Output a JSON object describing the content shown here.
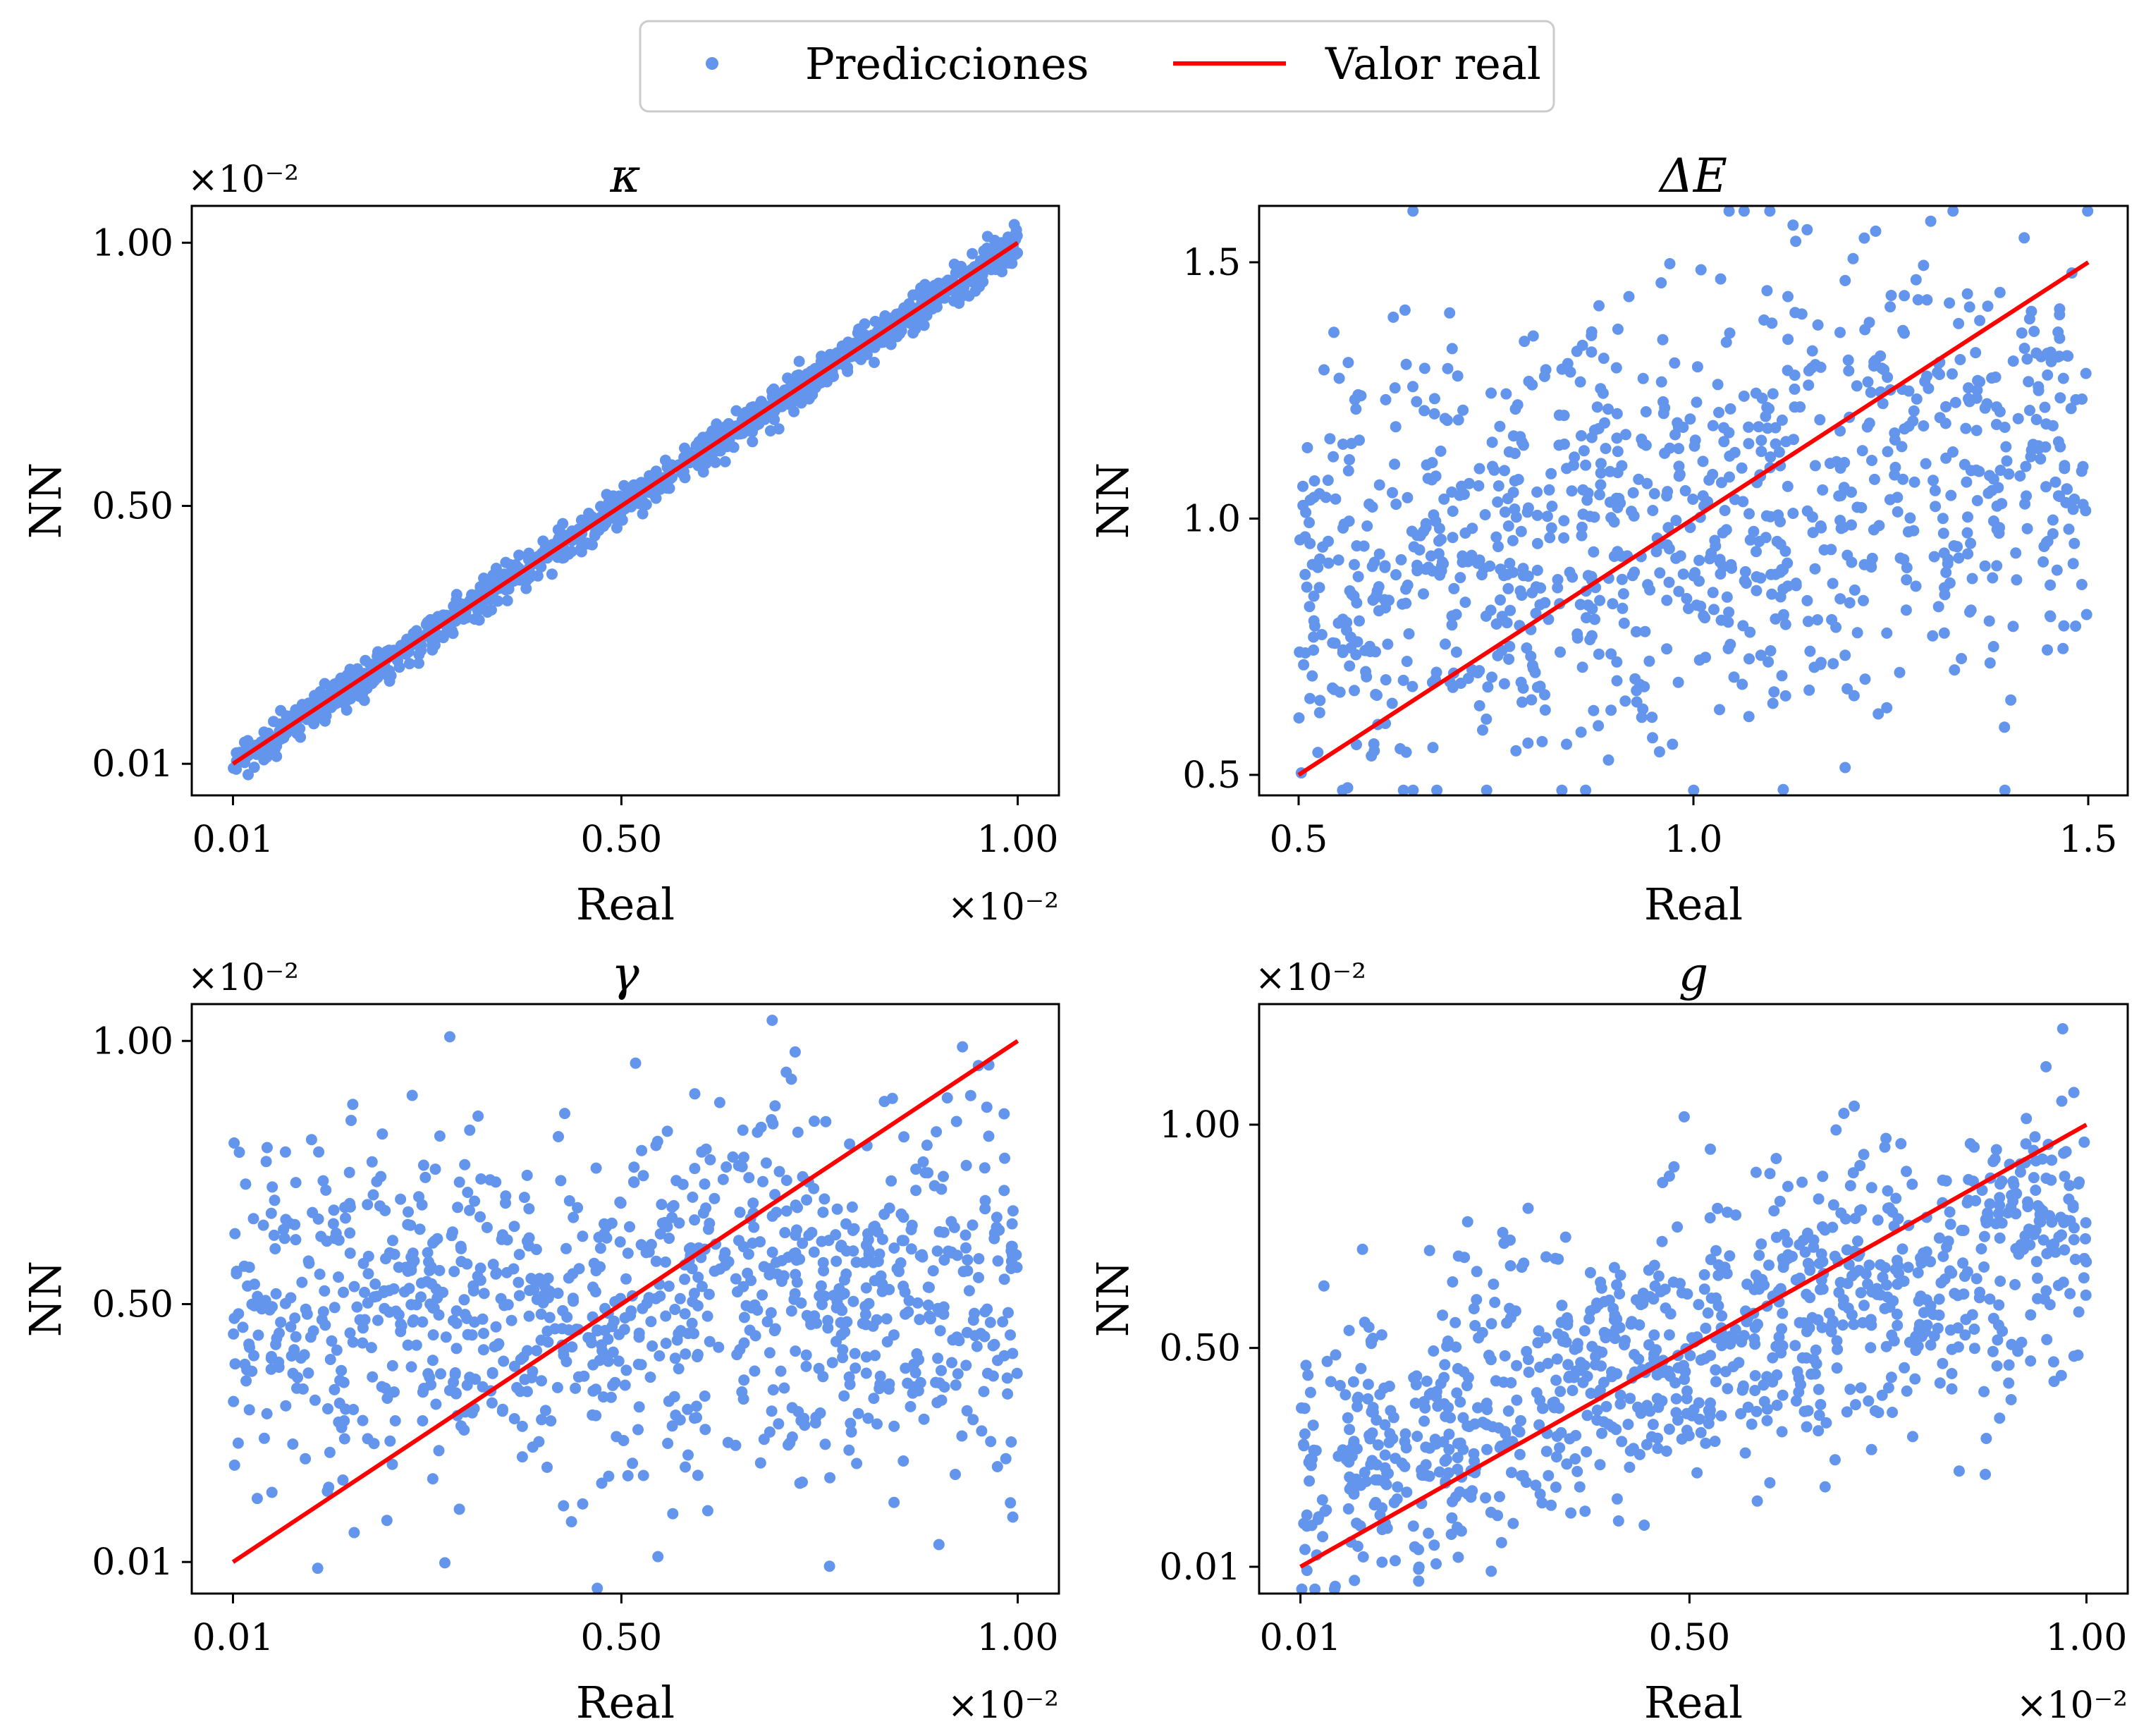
{
  "legend": {
    "items": [
      {
        "label": "Predicciones",
        "kind": "marker",
        "color": "#6495ED"
      },
      {
        "label": "Valor real",
        "kind": "line",
        "color": "#FF0000"
      }
    ]
  },
  "chart_data": [
    {
      "type": "scatter",
      "title": "κ",
      "xlabel": "Real",
      "ylabel": "NN",
      "x_offset_text": "×10⁻²",
      "y_offset_text": "×10⁻²",
      "xlim": [
        -0.042,
        1.052
      ],
      "ylim": [
        -0.05,
        1.07
      ],
      "xticks": [
        {
          "value": 0.01,
          "label": "0.01"
        },
        {
          "value": 0.5,
          "label": "0.50"
        },
        {
          "value": 1.0,
          "label": "1.00"
        }
      ],
      "yticks": [
        {
          "value": 0.01,
          "label": "0.01"
        },
        {
          "value": 0.5,
          "label": "0.50"
        },
        {
          "value": 1.0,
          "label": "1.00"
        }
      ],
      "series": [
        {
          "name": "Predicciones",
          "x_range": [
            0.01,
            1.0
          ],
          "relation": "y≈x",
          "noise": 0.018,
          "count": 1000
        },
        {
          "name": "Valor real",
          "x": [
            0.01,
            1.0
          ],
          "y": [
            0.01,
            1.0
          ]
        }
      ]
    },
    {
      "type": "scatter",
      "title": "ΔE",
      "xlabel": "Real",
      "ylabel": "NN",
      "x_offset_text": "",
      "y_offset_text": "",
      "xlim": [
        0.45,
        1.55
      ],
      "ylim": [
        0.46,
        1.61
      ],
      "xticks": [
        {
          "value": 0.5,
          "label": "0.5"
        },
        {
          "value": 1.0,
          "label": "1.0"
        },
        {
          "value": 1.5,
          "label": "1.5"
        }
      ],
      "yticks": [
        {
          "value": 0.5,
          "label": "0.5"
        },
        {
          "value": 1.0,
          "label": "1.0"
        },
        {
          "value": 1.5,
          "label": "1.5"
        }
      ],
      "series": [
        {
          "name": "Predicciones",
          "x_range": [
            0.5,
            1.5
          ],
          "relation": "weakly correlated, wide scatter",
          "noise": 0.22,
          "count": 1000
        },
        {
          "name": "Valor real",
          "x": [
            0.5,
            1.5
          ],
          "y": [
            0.5,
            1.5
          ]
        }
      ]
    },
    {
      "type": "scatter",
      "title": "γ",
      "xlabel": "Real",
      "ylabel": "NN",
      "x_offset_text": "×10⁻²",
      "y_offset_text": "×10⁻²",
      "xlim": [
        -0.042,
        1.052
      ],
      "ylim": [
        -0.05,
        1.07
      ],
      "xticks": [
        {
          "value": 0.01,
          "label": "0.01"
        },
        {
          "value": 0.5,
          "label": "0.50"
        },
        {
          "value": 1.0,
          "label": "1.00"
        }
      ],
      "yticks": [
        {
          "value": 0.01,
          "label": "0.01"
        },
        {
          "value": 0.5,
          "label": "0.50"
        },
        {
          "value": 1.0,
          "label": "1.00"
        }
      ],
      "series": [
        {
          "name": "Predicciones",
          "x_range": [
            0.01,
            1.0
          ],
          "relation": "uncorrelated, centered near 0.50",
          "noise": 0.17,
          "count": 1000
        },
        {
          "name": "Valor real",
          "x": [
            0.01,
            1.0
          ],
          "y": [
            0.01,
            1.0
          ]
        }
      ]
    },
    {
      "type": "scatter",
      "title": "g",
      "xlabel": "Real",
      "ylabel": "NN",
      "x_offset_text": "×10⁻²",
      "y_offset_text": "×10⁻²",
      "xlim": [
        -0.042,
        1.052
      ],
      "ylim": [
        -0.05,
        1.27
      ],
      "xticks": [
        {
          "value": 0.01,
          "label": "0.01"
        },
        {
          "value": 0.5,
          "label": "0.50"
        },
        {
          "value": 1.0,
          "label": "1.00"
        }
      ],
      "yticks": [
        {
          "value": 0.01,
          "label": "0.01"
        },
        {
          "value": 0.5,
          "label": "0.50"
        },
        {
          "value": 1.0,
          "label": "1.00"
        }
      ],
      "series": [
        {
          "name": "Predicciones",
          "x_range": [
            0.01,
            1.0
          ],
          "relation": "moderately correlated",
          "noise": 0.16,
          "count": 1000
        },
        {
          "name": "Valor real",
          "x": [
            0.01,
            1.0
          ],
          "y": [
            0.01,
            1.0
          ]
        }
      ]
    }
  ]
}
